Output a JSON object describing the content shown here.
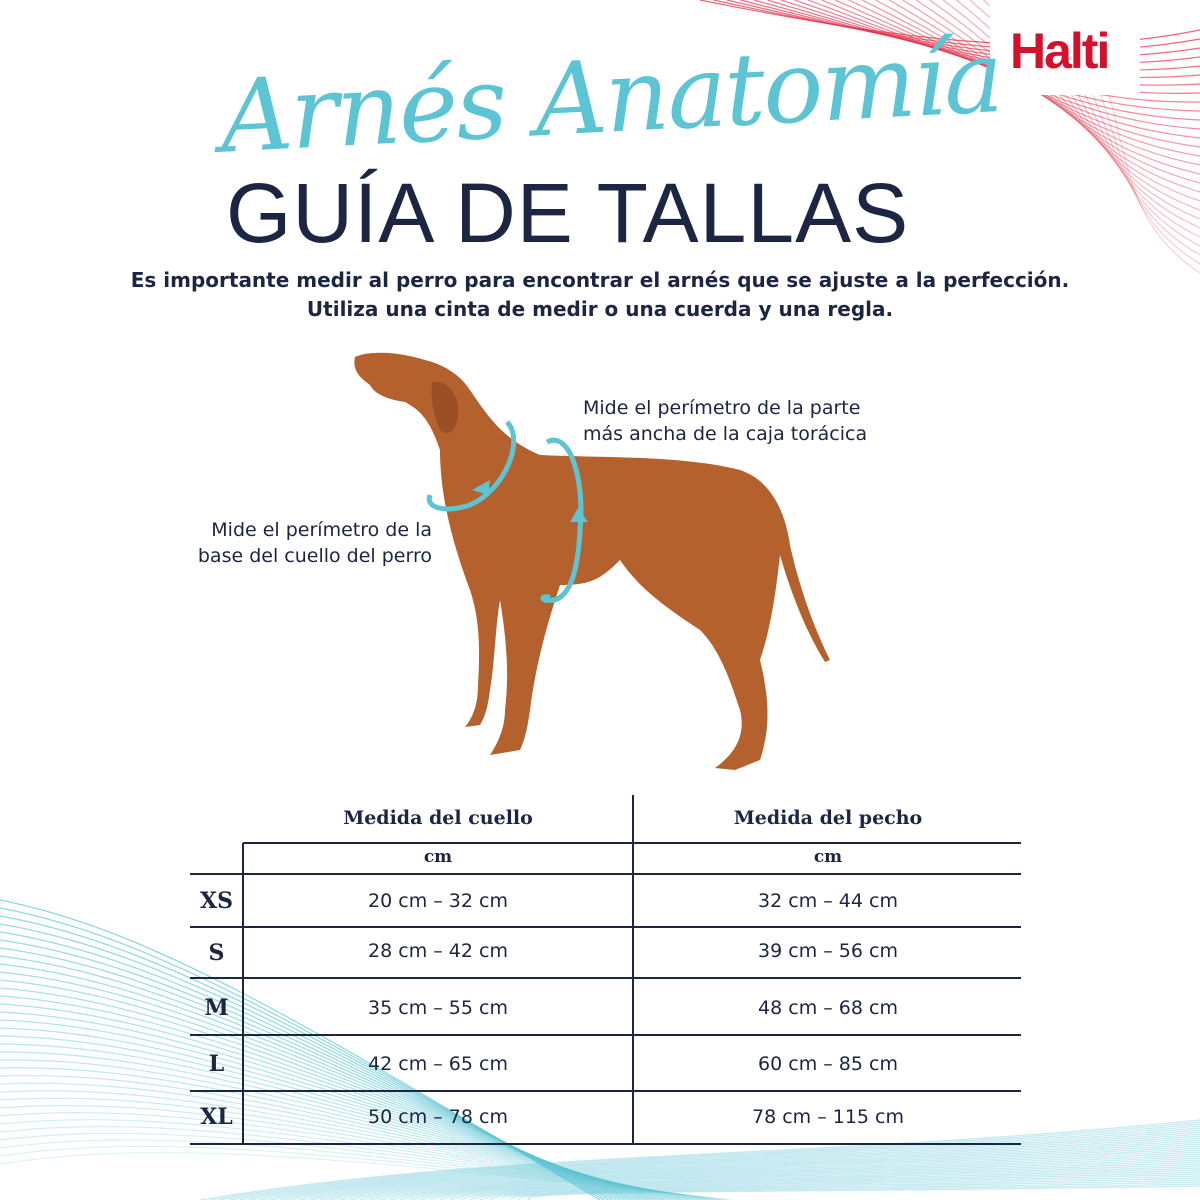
{
  "brand": {
    "logo_text": "Halti",
    "color": "#d4112c"
  },
  "header": {
    "script_title": "Arnés Anatomía",
    "title": "GUÍA DE TALLAS",
    "subtitle_line1": "Es importante medir al perro para encontrar el arnés que se ajuste a la perfección.",
    "subtitle_line2": "Utiliza una cinta de medir o una cuerda y una regla."
  },
  "diagram": {
    "chest_note_line1": "Mide el perímetro de la parte",
    "chest_note_line2": "más ancha de la caja torácica",
    "neck_note_line1": "Mide el perímetro de la",
    "neck_note_line2": "base del cuello del perro",
    "accent_color": "#5cc4d3"
  },
  "table": {
    "col_neck": "Medida del cuello",
    "col_chest": "Medida del pecho",
    "unit_neck": "cm",
    "unit_chest": "cm",
    "rows": [
      {
        "size": "XS",
        "neck": "20 cm – 32 cm",
        "chest": "32 cm – 44 cm"
      },
      {
        "size": "S",
        "neck": "28 cm – 42 cm",
        "chest": "39 cm – 56 cm"
      },
      {
        "size": "M",
        "neck": "35 cm – 55 cm",
        "chest": "48 cm – 68 cm"
      },
      {
        "size": "L",
        "neck": "42 cm – 65 cm",
        "chest": "60 cm – 85 cm"
      },
      {
        "size": "XL",
        "neck": "50 cm – 78 cm",
        "chest": "78 cm – 115 cm"
      }
    ]
  }
}
